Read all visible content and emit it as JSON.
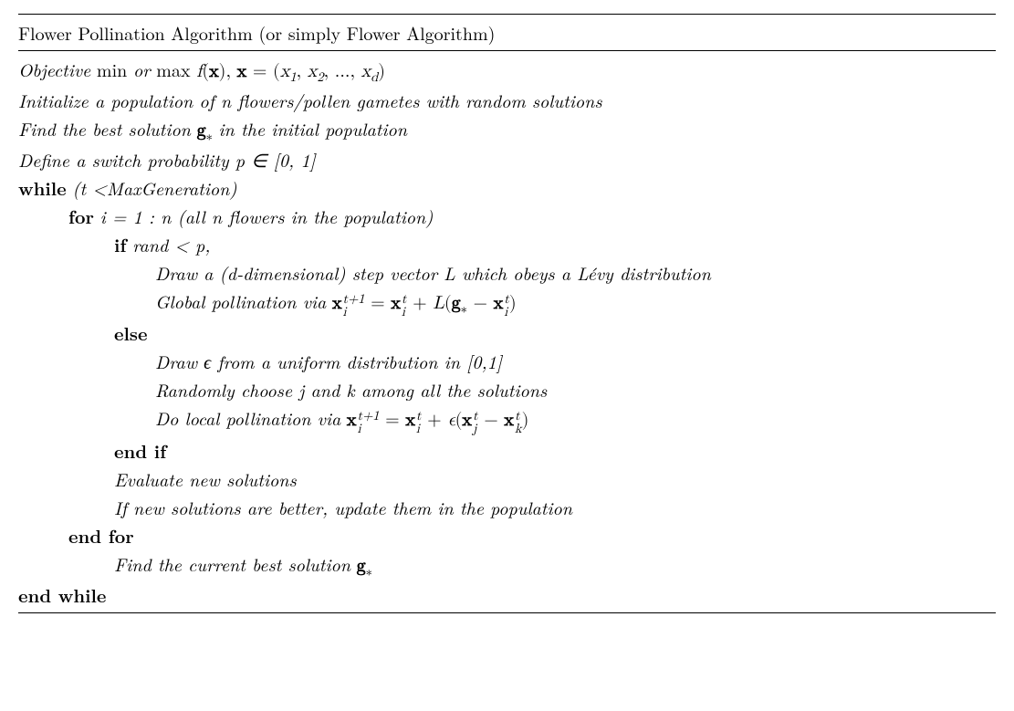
{
  "title_a": "Flower Pollination Algorithm (or simply Flower Algorithm)",
  "l1_a": "Objective",
  "l1_b": "min",
  "l1_c": "or",
  "l1_d": "max",
  "l2": "Initialize a population of n flowers/pollen gametes with random solutions",
  "l3_a": "Find the best solution",
  "l3_b": "in the initial population",
  "l4": "Define a switch probability p ∈ [0, 1]",
  "l5_a": "while",
  "l5_b": "(t <MaxGeneration)",
  "l6_a": "for",
  "l6_b": "i = 1 : n (all n flowers in the population)",
  "l7_a": "if",
  "l7_b": "rand < p",
  "l8": "Draw a (d-dimensional) step vector L which obeys a Lévy distribution",
  "l9_a": "Global pollination via",
  "l10": "else",
  "l11": "Draw ϵ from a uniform distribution in [0,1]",
  "l12": "Randomly choose j and k among all the solutions",
  "l13_a": "Do local pollination via",
  "l14": "end if",
  "l15": "Evaluate new solutions",
  "l16": "If new solutions are better, update them in the population",
  "l17": "end for",
  "l18_a": "Find the current best solution",
  "l19": "end while",
  "math": {
    "f": "f",
    "x": "x",
    "g": "g",
    "L": "L",
    "eps": "ϵ",
    "eq": " = ",
    "plus": " + ",
    "minus": " − ",
    "lp": "(",
    "rp": ")",
    "comma": ", ",
    "ellipsis": "...",
    "star": "∗",
    "sup_t": "t",
    "sup_t1": "t+1",
    "sub_i": "i",
    "sub_j": "j",
    "sub_k": "k",
    "sub_1": "1",
    "sub_2": "2",
    "sub_d": "d"
  }
}
